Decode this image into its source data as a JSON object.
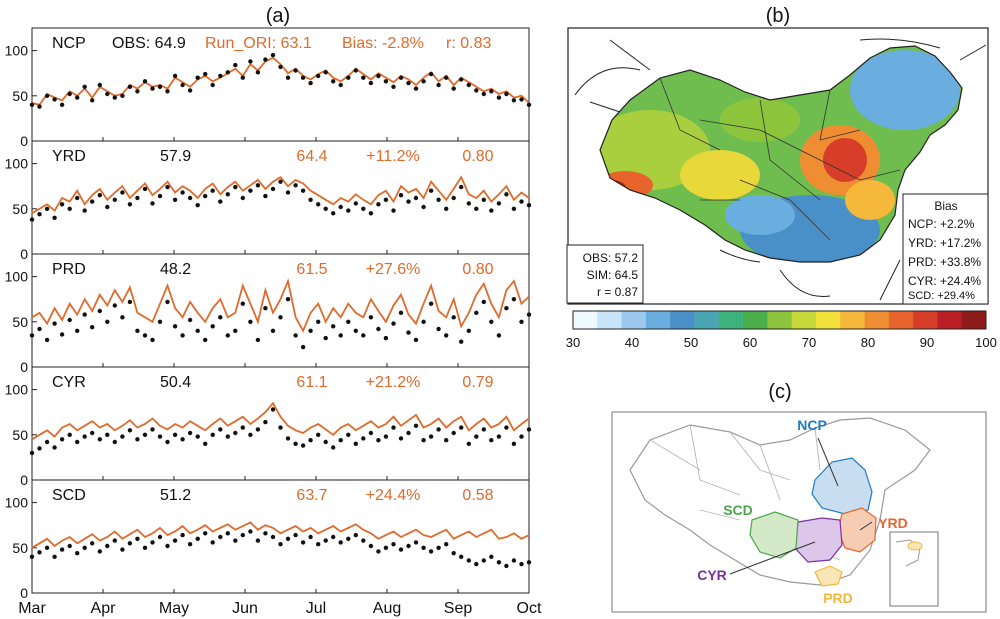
{
  "panel_labels": {
    "a": "(a)",
    "b": "(b)",
    "c": "(c)"
  },
  "colors": {
    "obs": "#111111",
    "sim": "#e06a2c"
  },
  "chart_data": [
    {
      "type": "line",
      "panel": "(a)",
      "x_ticks": [
        "Mar",
        "Apr",
        "May",
        "Jun",
        "Jul",
        "Aug",
        "Sep",
        "Oct"
      ],
      "y_ticks": [
        0,
        50,
        100
      ],
      "ylim": [
        0,
        125
      ],
      "header": {
        "obs_label": "OBS:",
        "sim_label": "Run_ORI:",
        "bias_label": "Bias:",
        "r_label": "r:"
      },
      "series": [
        {
          "name": "OBS",
          "style": "markers",
          "color": "#111111"
        },
        {
          "name": "Run_ORI",
          "style": "line",
          "color": "#e06a2c"
        }
      ],
      "regions": [
        {
          "name": "NCP",
          "obs": "64.9",
          "sim": "63.1",
          "bias": "-2.8%",
          "r": "0.83",
          "sim_values": [
            42,
            40,
            52,
            48,
            45,
            55,
            50,
            58,
            48,
            60,
            55,
            50,
            52,
            62,
            58,
            65,
            60,
            62,
            58,
            70,
            65,
            60,
            68,
            72,
            66,
            70,
            75,
            80,
            72,
            85,
            78,
            88,
            92,
            85,
            75,
            80,
            72,
            68,
            74,
            78,
            70,
            66,
            72,
            80,
            74,
            68,
            75,
            70,
            65,
            72,
            68,
            62,
            70,
            76,
            66,
            72,
            62,
            70,
            65,
            60,
            55,
            58,
            52,
            55,
            48,
            50,
            42
          ],
          "obs_values": [
            40,
            38,
            50,
            46,
            40,
            52,
            48,
            60,
            45,
            62,
            52,
            48,
            50,
            60,
            55,
            66,
            58,
            60,
            55,
            72,
            62,
            56,
            70,
            74,
            62,
            72,
            76,
            84,
            70,
            88,
            76,
            90,
            95,
            82,
            70,
            78,
            70,
            64,
            72,
            76,
            66,
            62,
            70,
            78,
            70,
            64,
            72,
            66,
            60,
            70,
            64,
            58,
            66,
            74,
            62,
            70,
            58,
            68,
            62,
            56,
            52,
            55,
            48,
            52,
            45,
            46,
            40
          ]
        },
        {
          "name": "YRD",
          "obs": "57.9",
          "sim": "64.4",
          "bias": "+11.2%",
          "r": "0.80",
          "sim_values": [
            45,
            50,
            55,
            48,
            62,
            58,
            70,
            55,
            65,
            72,
            60,
            68,
            75,
            62,
            70,
            78,
            65,
            72,
            80,
            68,
            75,
            70,
            62,
            72,
            78,
            66,
            74,
            80,
            70,
            76,
            82,
            72,
            80,
            85,
            75,
            82,
            78,
            70,
            65,
            60,
            55,
            62,
            58,
            66,
            60,
            55,
            65,
            70,
            58,
            75,
            68,
            72,
            62,
            80,
            70,
            60,
            72,
            85,
            66,
            62,
            70,
            58,
            66,
            75,
            60,
            68,
            62
          ],
          "obs_values": [
            38,
            44,
            50,
            40,
            55,
            50,
            62,
            48,
            58,
            65,
            52,
            60,
            68,
            55,
            62,
            72,
            56,
            64,
            74,
            60,
            68,
            62,
            54,
            64,
            70,
            58,
            66,
            74,
            62,
            70,
            76,
            64,
            72,
            80,
            68,
            76,
            70,
            60,
            55,
            50,
            45,
            52,
            48,
            56,
            50,
            45,
            55,
            60,
            48,
            65,
            58,
            62,
            52,
            70,
            60,
            50,
            62,
            74,
            56,
            50,
            60,
            48,
            56,
            66,
            50,
            58,
            54
          ]
        },
        {
          "name": "PRD",
          "obs": "48.2",
          "sim": "61.5",
          "bias": "+27.6%",
          "r": "0.80",
          "sim_values": [
            55,
            60,
            48,
            65,
            52,
            70,
            58,
            75,
            62,
            80,
            68,
            85,
            72,
            88,
            60,
            55,
            50,
            70,
            90,
            65,
            55,
            72,
            60,
            50,
            65,
            75,
            55,
            60,
            90,
            70,
            50,
            85,
            60,
            75,
            95,
            55,
            40,
            60,
            70,
            50,
            65,
            55,
            70,
            60,
            55,
            75,
            62,
            50,
            68,
            80,
            58,
            48,
            70,
            90,
            62,
            55,
            75,
            45,
            60,
            80,
            92,
            70,
            55,
            85,
            95,
            70,
            78
          ],
          "obs_values": [
            35,
            42,
            30,
            48,
            36,
            52,
            40,
            58,
            44,
            62,
            50,
            68,
            55,
            72,
            40,
            35,
            30,
            50,
            72,
            45,
            35,
            52,
            40,
            30,
            45,
            55,
            35,
            40,
            70,
            50,
            30,
            65,
            40,
            55,
            75,
            35,
            22,
            40,
            50,
            32,
            45,
            35,
            50,
            40,
            35,
            55,
            42,
            32,
            48,
            60,
            38,
            30,
            50,
            70,
            42,
            35,
            55,
            28,
            40,
            60,
            72,
            50,
            35,
            65,
            75,
            50,
            58
          ]
        },
        {
          "name": "CYR",
          "obs": "50.4",
          "sim": "61.1",
          "bias": "+21.2%",
          "r": "0.79",
          "sim_values": [
            45,
            50,
            55,
            48,
            58,
            62,
            55,
            60,
            65,
            58,
            62,
            55,
            60,
            66,
            58,
            62,
            68,
            60,
            56,
            62,
            58,
            65,
            60,
            55,
            62,
            68,
            60,
            65,
            70,
            62,
            68,
            75,
            85,
            70,
            60,
            55,
            52,
            58,
            62,
            56,
            50,
            58,
            62,
            55,
            60,
            65,
            58,
            62,
            70,
            60,
            66,
            72,
            58,
            62,
            68,
            58,
            65,
            70,
            55,
            62,
            68,
            58,
            62,
            70,
            55,
            62,
            68
          ],
          "obs_values": [
            30,
            35,
            42,
            36,
            45,
            50,
            42,
            48,
            52,
            45,
            50,
            42,
            48,
            55,
            45,
            50,
            56,
            48,
            42,
            50,
            45,
            52,
            48,
            40,
            50,
            56,
            48,
            52,
            58,
            50,
            56,
            64,
            78,
            58,
            46,
            40,
            38,
            44,
            50,
            42,
            36,
            44,
            50,
            40,
            46,
            52,
            44,
            48,
            58,
            46,
            52,
            60,
            44,
            48,
            56,
            44,
            52,
            58,
            40,
            48,
            56,
            44,
            48,
            58,
            40,
            48,
            56
          ]
        },
        {
          "name": "SCD",
          "obs": "51.2",
          "sim": "63.7",
          "bias": "+24.4%",
          "r": "0.58",
          "sim_values": [
            50,
            55,
            60,
            52,
            58,
            62,
            55,
            60,
            65,
            58,
            62,
            68,
            60,
            65,
            70,
            62,
            66,
            72,
            64,
            68,
            74,
            66,
            70,
            75,
            68,
            72,
            76,
            70,
            74,
            78,
            70,
            75,
            72,
            66,
            70,
            74,
            68,
            72,
            66,
            70,
            74,
            68,
            72,
            76,
            70,
            66,
            60,
            64,
            68,
            62,
            66,
            70,
            64,
            62,
            66,
            70,
            60,
            64,
            68,
            62,
            66,
            70,
            60,
            62,
            66,
            60,
            64
          ],
          "obs_values": [
            40,
            45,
            50,
            40,
            48,
            52,
            44,
            50,
            55,
            46,
            52,
            58,
            48,
            55,
            60,
            50,
            56,
            62,
            52,
            58,
            64,
            54,
            60,
            66,
            56,
            62,
            66,
            58,
            64,
            68,
            58,
            66,
            62,
            54,
            60,
            64,
            56,
            62,
            54,
            58,
            62,
            56,
            60,
            64,
            58,
            52,
            46,
            50,
            54,
            48,
            52,
            56,
            50,
            46,
            50,
            54,
            44,
            40,
            36,
            32,
            36,
            40,
            34,
            30,
            36,
            32,
            34
          ]
        }
      ]
    },
    {
      "type": "heatmap",
      "panel": "(b)",
      "colorbar_ticks": [
        30,
        40,
        50,
        60,
        70,
        80,
        90,
        100
      ],
      "colorbar_colors": [
        "#f0f8ff",
        "#c8e4f8",
        "#9ccaee",
        "#6aaedf",
        "#4a90c8",
        "#4aa6b2",
        "#3db37c",
        "#4aae4a",
        "#8cc53c",
        "#c6d93a",
        "#f3e13b",
        "#f5b83a",
        "#ef8d32",
        "#e8642c",
        "#d63e2a",
        "#b81e24",
        "#8e1a1a"
      ],
      "stats": {
        "obs": "OBS: 57.2",
        "sim": "SIM: 64.5",
        "r": "r = 0.87"
      },
      "bias_title": "Bias",
      "bias": [
        {
          "label": "NCP: +2.2%"
        },
        {
          "label": "YRD: +17.2%"
        },
        {
          "label": "PRD: +33.8%"
        },
        {
          "label": "CYR: +24.4%"
        },
        {
          "label": "SCD: +29.4%"
        }
      ]
    },
    {
      "type": "map",
      "panel": "(c)",
      "regions": [
        {
          "name": "NCP",
          "color": "#1f7ac7",
          "fill": "#c9ddf1"
        },
        {
          "name": "YRD",
          "color": "#e8642c",
          "fill": "#f6cdb3"
        },
        {
          "name": "PRD",
          "color": "#f2b63a",
          "fill": "#fbe7b6"
        },
        {
          "name": "CYR",
          "color": "#7a2fa6",
          "fill": "#dcc6ea"
        },
        {
          "name": "SCD",
          "color": "#4aa64a",
          "fill": "#d4e9c8"
        }
      ]
    }
  ]
}
